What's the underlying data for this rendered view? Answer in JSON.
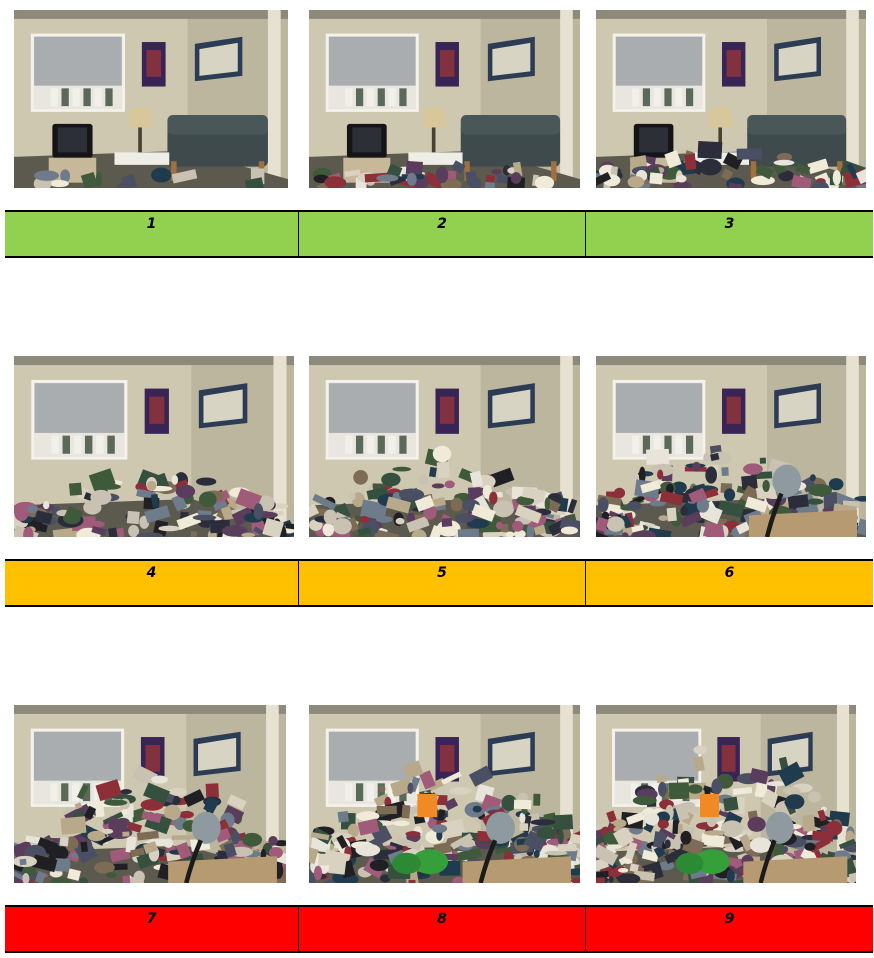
{
  "rows": [
    {
      "color": "#92d050",
      "items": [
        {
          "label": "1",
          "clutter": 0.05
        },
        {
          "label": "2",
          "clutter": 0.15
        },
        {
          "label": "3",
          "clutter": 0.25
        }
      ]
    },
    {
      "color": "#ffc000",
      "items": [
        {
          "label": "4",
          "clutter": 0.45
        },
        {
          "label": "5",
          "clutter": 0.55
        },
        {
          "label": "6",
          "clutter": 0.68
        }
      ]
    },
    {
      "color": "#ff0000",
      "items": [
        {
          "label": "7",
          "clutter": 0.78
        },
        {
          "label": "8",
          "clutter": 0.88
        },
        {
          "label": "9",
          "clutter": 1.0
        }
      ]
    }
  ]
}
